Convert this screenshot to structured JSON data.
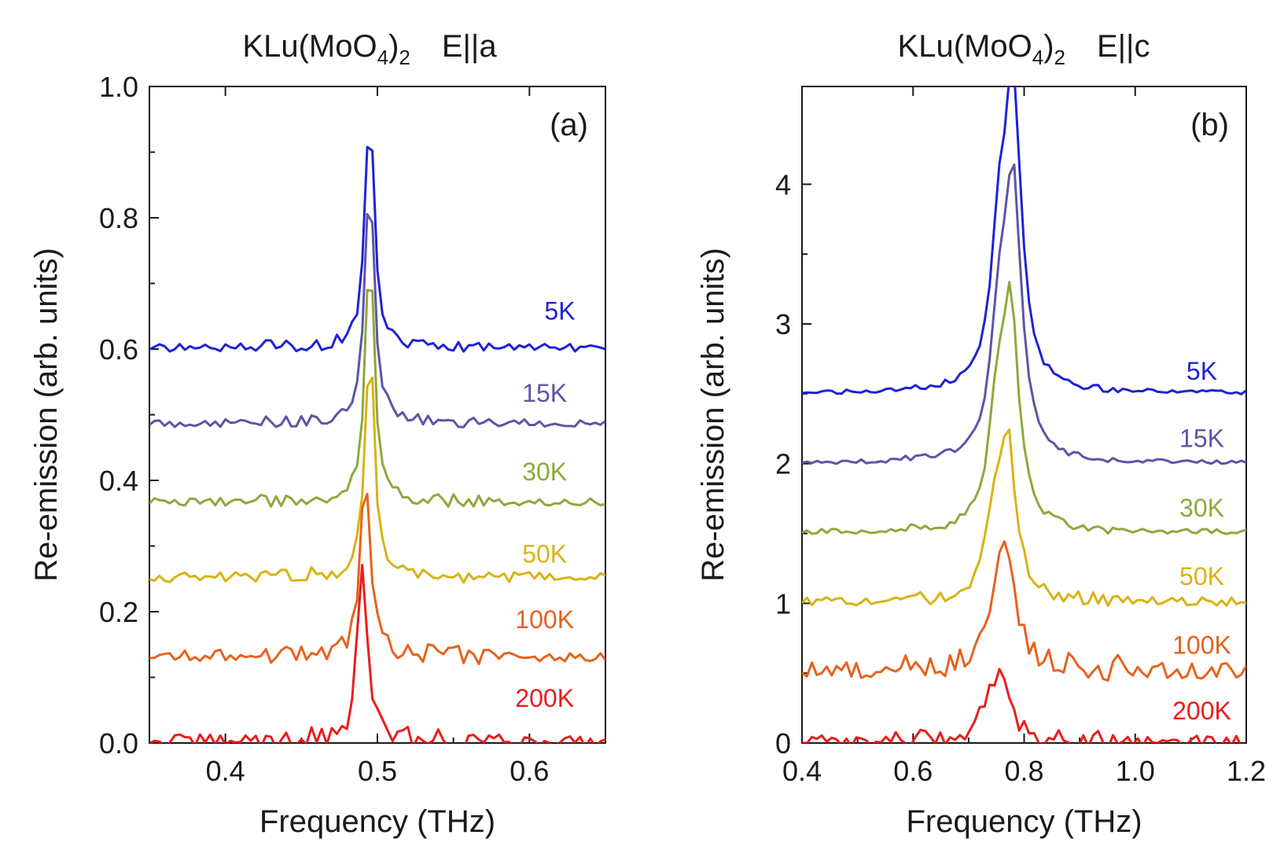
{
  "chart_data": [
    {
      "type": "line",
      "panel_label": "(a)",
      "title": {
        "compound": "KLu(MoO",
        "sub4": "4",
        "close": ")",
        "sub2": "2",
        "polarization": "E||a"
      },
      "xlabel": "Frequency (THz)",
      "ylabel": "Re-emission (arb. units)",
      "xlim": [
        0.35,
        0.65
      ],
      "ylim": [
        0.0,
        1.0
      ],
      "x_ticks": [
        0.4,
        0.5,
        0.6
      ],
      "x_tick_labels": [
        "0.4",
        "0.5",
        "0.6"
      ],
      "y_ticks": [
        0.0,
        0.2,
        0.4,
        0.6,
        0.8,
        1.0
      ],
      "y_tick_labels": [
        "0.0",
        "0.2",
        "0.4",
        "0.6",
        "0.8",
        "1.0"
      ],
      "grid": false,
      "series": [
        {
          "name": "5K",
          "color": "#1f22d6",
          "offset": 0.6,
          "peak_x": 0.495,
          "peak_height": 0.37,
          "noise": 0.012,
          "label_at": [
            0.62,
            0.645
          ]
        },
        {
          "name": "15K",
          "color": "#5c55a8",
          "offset": 0.485,
          "peak_x": 0.495,
          "peak_height": 0.38,
          "noise": 0.012,
          "label_at": [
            0.61,
            0.52
          ]
        },
        {
          "name": "30K",
          "color": "#8fa83c",
          "offset": 0.365,
          "peak_x": 0.495,
          "peak_height": 0.38,
          "noise": 0.012,
          "label_at": [
            0.61,
            0.4
          ]
        },
        {
          "name": "50K",
          "color": "#d9b213",
          "offset": 0.25,
          "peak_x": 0.495,
          "peak_height": 0.36,
          "noise": 0.015,
          "label_at": [
            0.61,
            0.275
          ]
        },
        {
          "name": "100K",
          "color": "#e6621e",
          "offset": 0.13,
          "peak_x": 0.492,
          "peak_height": 0.28,
          "noise": 0.02,
          "label_at": [
            0.61,
            0.175
          ]
        },
        {
          "name": "200K",
          "color": "#ec1c1c",
          "offset": 0.0,
          "peak_x": 0.49,
          "peak_height": 0.28,
          "noise": 0.02,
          "label_at": [
            0.61,
            0.055
          ]
        }
      ]
    },
    {
      "type": "line",
      "panel_label": "(b)",
      "title": {
        "compound": "KLu(MoO",
        "sub4": "4",
        "close": ")",
        "sub2": "2",
        "polarization": "E||c"
      },
      "xlabel": "Frequency (THz)",
      "ylabel": "Re-emission (arb. units)",
      "xlim": [
        0.4,
        1.2
      ],
      "ylim": [
        0.0,
        4.7
      ],
      "x_ticks": [
        0.4,
        0.6,
        0.8,
        1.0,
        1.2
      ],
      "x_tick_labels": [
        "0.4",
        "0.6",
        "0.8",
        "1.0",
        "1.2"
      ],
      "y_ticks": [
        0,
        1,
        2,
        3,
        4
      ],
      "y_tick_labels": [
        "0",
        "1",
        "2",
        "3",
        "4"
      ],
      "grid": false,
      "series": [
        {
          "name": "5K",
          "color": "#1f22d6",
          "offset": 2.5,
          "peak_x": 0.78,
          "peak_height": 2.05,
          "noise": 0.03,
          "label_at": [
            1.12,
            2.6
          ]
        },
        {
          "name": "15K",
          "color": "#5c55a8",
          "offset": 2.0,
          "peak_x": 0.78,
          "peak_height": 1.9,
          "noise": 0.03,
          "label_at": [
            1.12,
            2.12
          ]
        },
        {
          "name": "30K",
          "color": "#8fa83c",
          "offset": 1.5,
          "peak_x": 0.775,
          "peak_height": 1.55,
          "noise": 0.04,
          "label_at": [
            1.12,
            1.62
          ]
        },
        {
          "name": "50K",
          "color": "#d9b213",
          "offset": 1.0,
          "peak_x": 0.77,
          "peak_height": 1.1,
          "noise": 0.06,
          "label_at": [
            1.12,
            1.13
          ]
        },
        {
          "name": "100K",
          "color": "#e6621e",
          "offset": 0.5,
          "peak_x": 0.77,
          "peak_height": 0.8,
          "noise": 0.12,
          "label_at": [
            1.12,
            0.64
          ]
        },
        {
          "name": "200K",
          "color": "#ec1c1c",
          "offset": 0.0,
          "peak_x": 0.76,
          "peak_height": 0.45,
          "noise": 0.08,
          "label_at": [
            1.12,
            0.17
          ]
        }
      ]
    }
  ]
}
